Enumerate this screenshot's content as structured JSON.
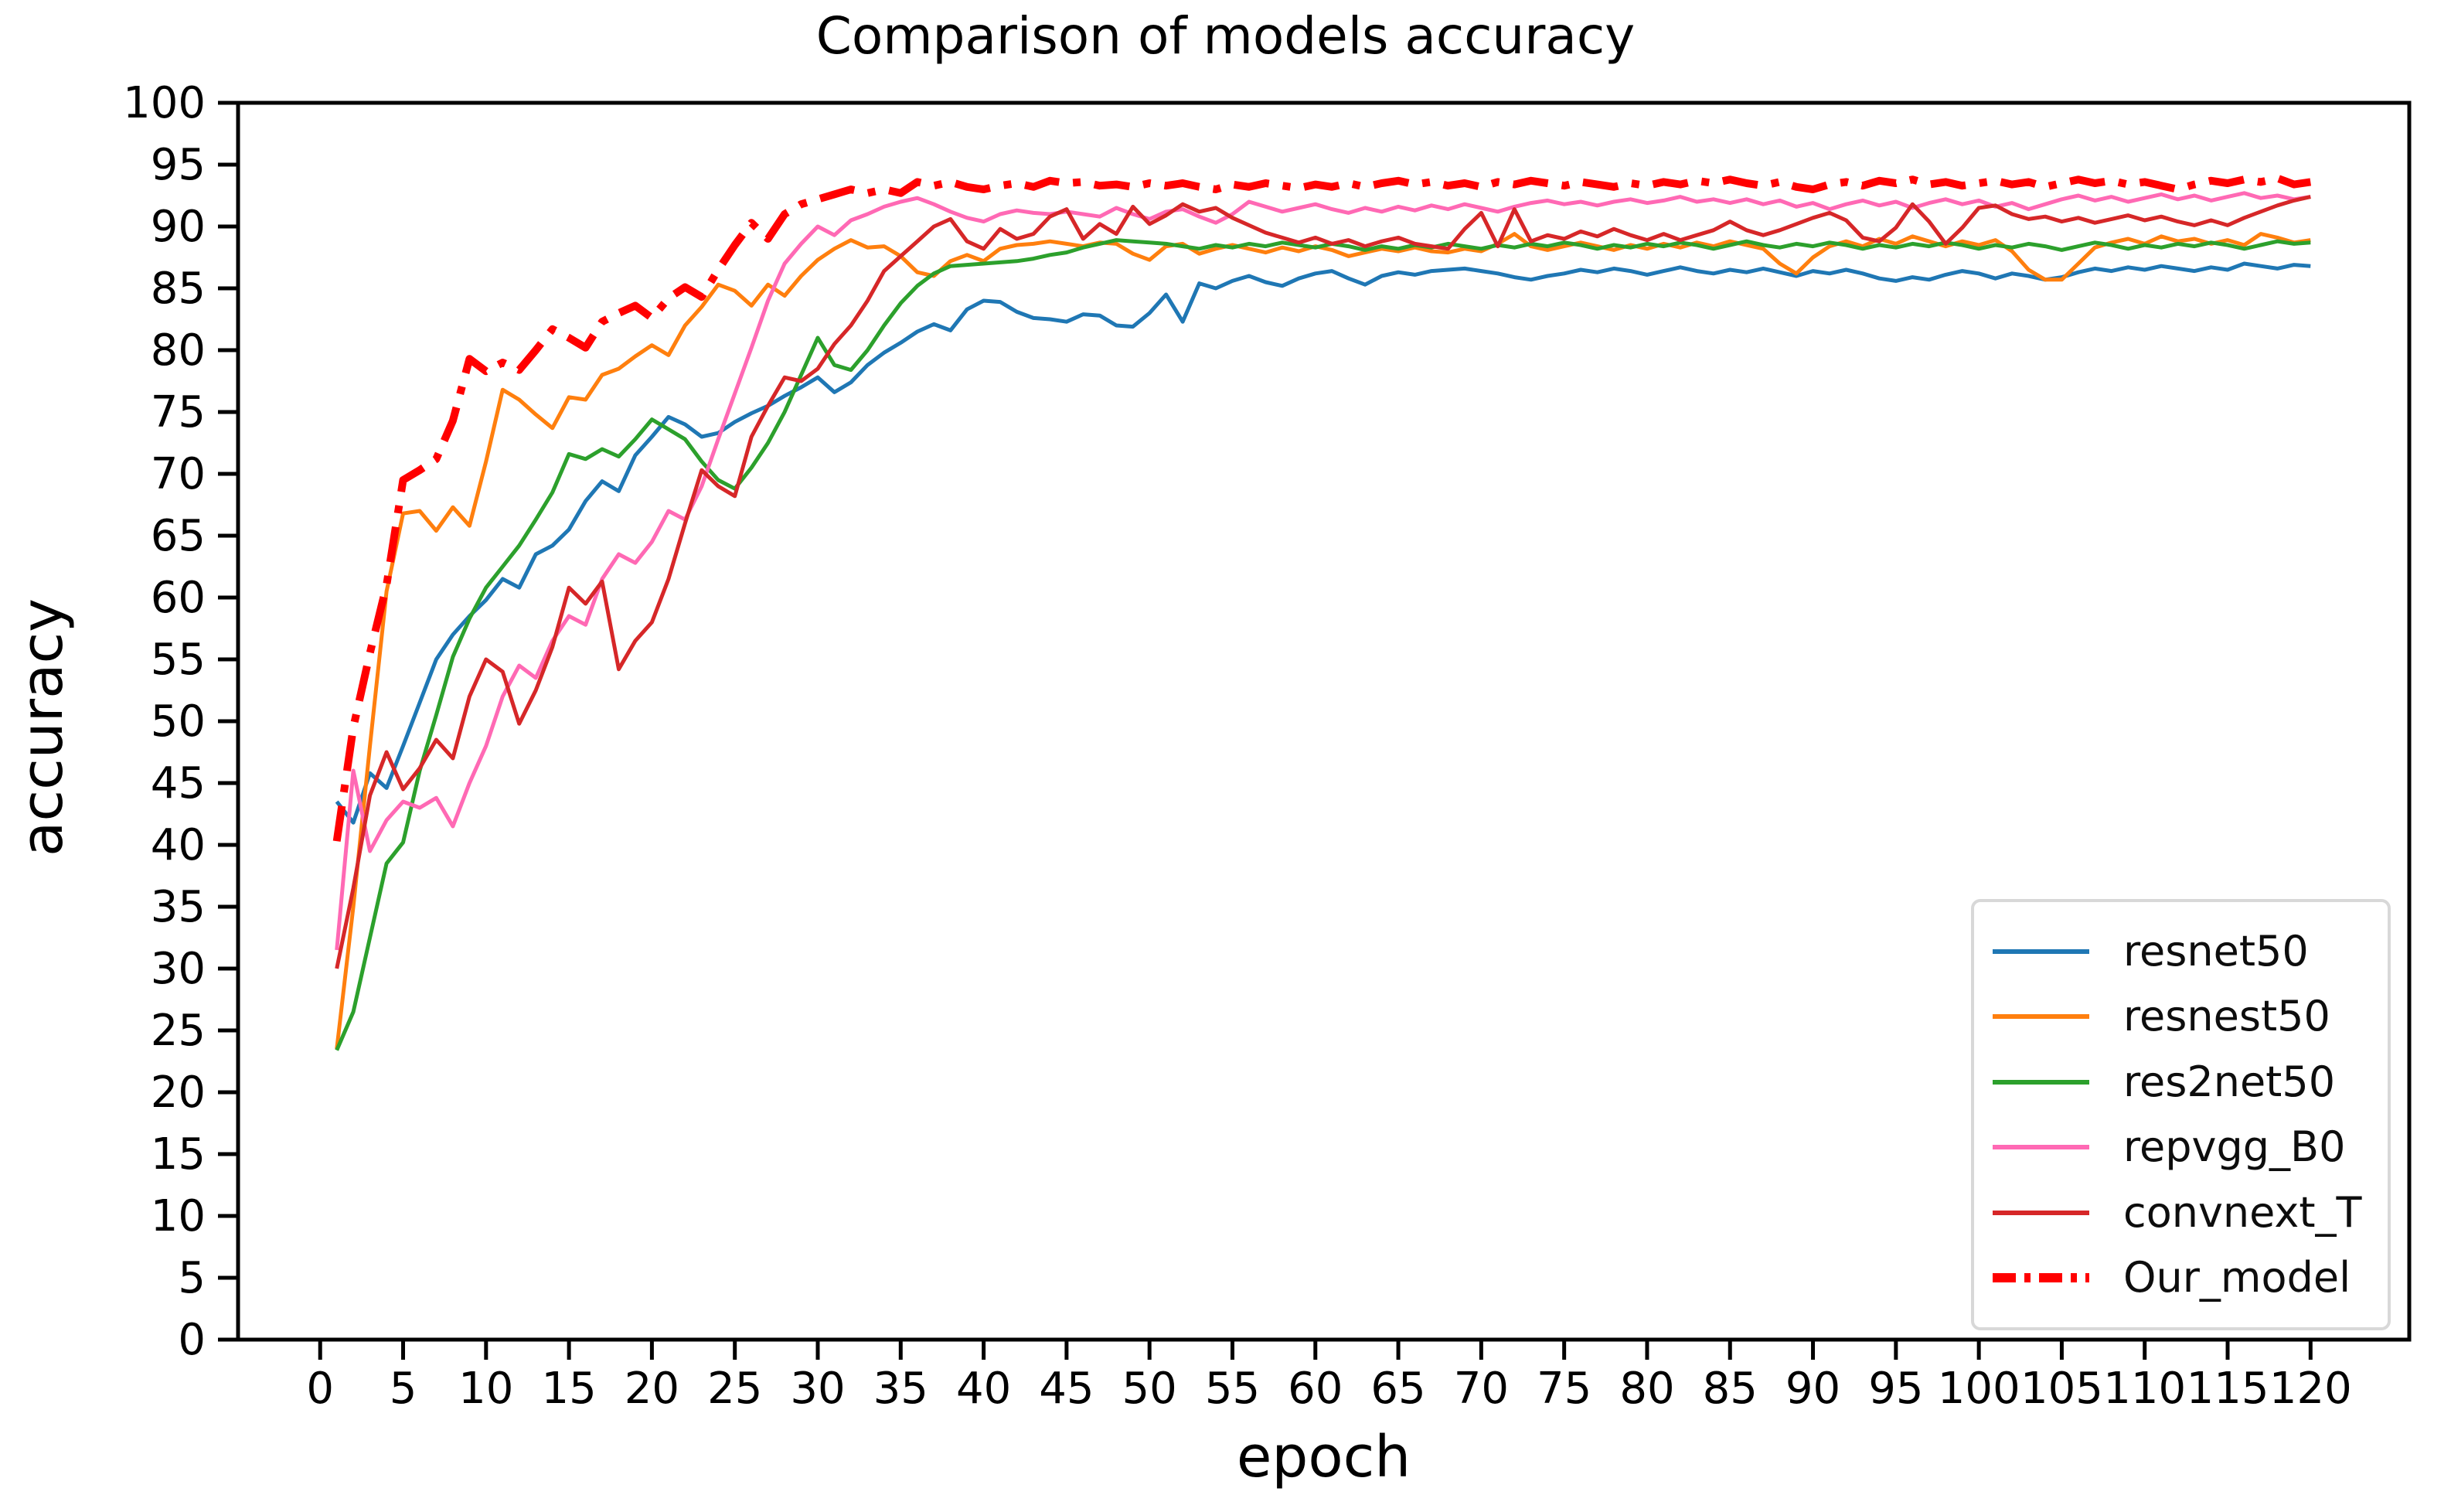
{
  "title": "Comparison of models accuracy",
  "chart_data": {
    "type": "line",
    "title": "Comparison of models accuracy",
    "xlabel": "epoch",
    "ylabel": "accuracy",
    "xlim": [
      -4.95,
      125.95
    ],
    "ylim": [
      0,
      100
    ],
    "xticks": [
      0,
      5,
      10,
      15,
      20,
      25,
      30,
      35,
      40,
      45,
      50,
      55,
      60,
      65,
      70,
      75,
      80,
      85,
      90,
      95,
      100,
      105,
      110,
      115,
      120
    ],
    "yticks": [
      0,
      5,
      10,
      15,
      20,
      25,
      30,
      35,
      40,
      45,
      50,
      55,
      60,
      65,
      70,
      75,
      80,
      85,
      90,
      95,
      100
    ],
    "grid": false,
    "legend_position": "lower right",
    "x": [
      1,
      2,
      3,
      4,
      5,
      6,
      7,
      8,
      9,
      10,
      11,
      12,
      13,
      14,
      15,
      16,
      17,
      18,
      19,
      20,
      21,
      22,
      23,
      24,
      25,
      26,
      27,
      28,
      29,
      30,
      31,
      32,
      33,
      34,
      35,
      36,
      37,
      38,
      39,
      40,
      41,
      42,
      43,
      44,
      45,
      46,
      47,
      48,
      49,
      50,
      51,
      52,
      53,
      54,
      55,
      56,
      57,
      58,
      59,
      60,
      61,
      62,
      63,
      64,
      65,
      66,
      67,
      68,
      69,
      70,
      71,
      72,
      73,
      74,
      75,
      76,
      77,
      78,
      79,
      80,
      81,
      82,
      83,
      84,
      85,
      86,
      87,
      88,
      89,
      90,
      91,
      92,
      93,
      94,
      95,
      96,
      97,
      98,
      99,
      100,
      101,
      102,
      103,
      104,
      105,
      106,
      107,
      108,
      109,
      110,
      111,
      112,
      113,
      114,
      115,
      116,
      117,
      118,
      119,
      120
    ],
    "series": [
      {
        "name": "resnet50",
        "color": "#1f77b4",
        "linewidth": 5,
        "linestyle": "solid",
        "values": [
          43.5,
          41.8,
          45.8,
          44.6,
          48.0,
          51.5,
          55.0,
          57.0,
          58.5,
          59.8,
          61.5,
          60.8,
          63.5,
          64.2,
          65.5,
          67.8,
          69.4,
          68.6,
          71.5,
          73.0,
          74.6,
          74.0,
          73.0,
          73.3,
          74.2,
          74.9,
          75.5,
          76.3,
          77.0,
          77.8,
          76.6,
          77.4,
          78.8,
          79.8,
          80.6,
          81.5,
          82.1,
          81.6,
          83.3,
          84.0,
          83.9,
          83.1,
          82.6,
          82.5,
          82.3,
          82.9,
          82.8,
          82.0,
          81.9,
          83.0,
          84.5,
          82.3,
          85.4,
          85.0,
          85.6,
          86.0,
          85.5,
          85.2,
          85.8,
          86.2,
          86.4,
          85.8,
          85.3,
          86.0,
          86.3,
          86.1,
          86.4,
          86.5,
          86.6,
          86.4,
          86.2,
          85.9,
          85.7,
          86.0,
          86.2,
          86.5,
          86.3,
          86.6,
          86.4,
          86.1,
          86.4,
          86.7,
          86.4,
          86.2,
          86.5,
          86.3,
          86.6,
          86.3,
          86.0,
          86.4,
          86.2,
          86.5,
          86.2,
          85.8,
          85.6,
          85.9,
          85.7,
          86.1,
          86.4,
          86.2,
          85.8,
          86.2,
          86.0,
          85.7,
          85.9,
          86.3,
          86.6,
          86.4,
          86.7,
          86.5,
          86.8,
          86.6,
          86.4,
          86.7,
          86.5,
          87.0,
          86.8,
          86.6,
          86.9,
          86.8
        ]
      },
      {
        "name": "resnest50",
        "color": "#ff7f0e",
        "linewidth": 5,
        "linestyle": "solid",
        "values": [
          23.5,
          35.0,
          48.0,
          60.5,
          66.8,
          67.0,
          65.4,
          67.3,
          65.8,
          71.0,
          76.8,
          76.0,
          74.8,
          73.7,
          76.2,
          76.0,
          78.0,
          78.5,
          79.5,
          80.4,
          79.6,
          82.0,
          83.5,
          85.3,
          84.8,
          83.6,
          85.3,
          84.4,
          86.0,
          87.3,
          88.2,
          88.9,
          88.3,
          88.4,
          87.6,
          86.3,
          86.0,
          87.2,
          87.7,
          87.2,
          88.2,
          88.5,
          88.6,
          88.8,
          88.6,
          88.4,
          88.7,
          88.6,
          87.8,
          87.3,
          88.4,
          88.6,
          87.8,
          88.2,
          88.5,
          88.2,
          87.9,
          88.3,
          88.0,
          88.4,
          88.1,
          87.6,
          87.9,
          88.2,
          88.0,
          88.3,
          88.0,
          87.9,
          88.2,
          88.0,
          88.6,
          89.4,
          88.4,
          88.1,
          88.4,
          88.7,
          88.4,
          88.1,
          88.5,
          88.2,
          88.6,
          88.3,
          88.7,
          88.4,
          88.8,
          88.5,
          88.2,
          87.0,
          86.2,
          87.5,
          88.4,
          88.8,
          88.4,
          89.0,
          88.6,
          89.2,
          88.8,
          88.4,
          88.8,
          88.5,
          88.9,
          88.0,
          86.5,
          85.7,
          85.7,
          87.0,
          88.3,
          88.7,
          89.0,
          88.6,
          89.2,
          88.8,
          89.0,
          88.6,
          88.9,
          88.5,
          89.4,
          89.1,
          88.7,
          88.9
        ]
      },
      {
        "name": "res2net50",
        "color": "#2ca02c",
        "linewidth": 5,
        "linestyle": "solid",
        "values": [
          23.4,
          26.5,
          32.5,
          38.5,
          40.2,
          46.0,
          50.5,
          55.2,
          58.3,
          60.8,
          62.5,
          64.2,
          66.3,
          68.5,
          71.6,
          71.2,
          72.0,
          71.4,
          72.8,
          74.4,
          73.6,
          72.8,
          71.0,
          69.5,
          68.8,
          70.5,
          72.5,
          75.0,
          78.0,
          81.0,
          78.8,
          78.4,
          80.0,
          82.0,
          83.8,
          85.2,
          86.2,
          86.8,
          86.9,
          87.0,
          87.1,
          87.2,
          87.4,
          87.7,
          87.9,
          88.3,
          88.6,
          88.9,
          88.8,
          88.7,
          88.6,
          88.4,
          88.2,
          88.5,
          88.3,
          88.6,
          88.4,
          88.7,
          88.5,
          88.3,
          88.6,
          88.4,
          88.1,
          88.4,
          88.2,
          88.5,
          88.3,
          88.6,
          88.4,
          88.2,
          88.5,
          88.3,
          88.6,
          88.4,
          88.7,
          88.5,
          88.2,
          88.5,
          88.3,
          88.6,
          88.4,
          88.7,
          88.5,
          88.2,
          88.5,
          88.8,
          88.5,
          88.3,
          88.6,
          88.4,
          88.7,
          88.5,
          88.2,
          88.5,
          88.3,
          88.6,
          88.4,
          88.7,
          88.5,
          88.2,
          88.5,
          88.3,
          88.6,
          88.4,
          88.1,
          88.4,
          88.7,
          88.5,
          88.2,
          88.5,
          88.3,
          88.6,
          88.4,
          88.7,
          88.5,
          88.2,
          88.5,
          88.8,
          88.6,
          88.7
        ]
      },
      {
        "name": "repvgg_B0",
        "color": "#ff69b4",
        "linewidth": 5,
        "linestyle": "solid",
        "values": [
          31.5,
          46.0,
          39.5,
          42.0,
          43.5,
          43.0,
          43.8,
          41.5,
          45.0,
          48.0,
          52.0,
          54.5,
          53.5,
          56.5,
          58.5,
          57.8,
          61.5,
          63.5,
          62.8,
          64.5,
          67.0,
          66.3,
          69.0,
          72.8,
          76.5,
          80.2,
          84.0,
          87.0,
          88.6,
          90.0,
          89.3,
          90.5,
          91.0,
          91.6,
          92.0,
          92.3,
          91.8,
          91.2,
          90.7,
          90.4,
          91.0,
          91.3,
          91.1,
          91.0,
          91.2,
          91.0,
          90.8,
          91.5,
          91.0,
          90.6,
          91.2,
          91.4,
          90.8,
          90.3,
          91.0,
          92.0,
          91.6,
          91.2,
          91.5,
          91.8,
          91.4,
          91.1,
          91.5,
          91.2,
          91.6,
          91.3,
          91.7,
          91.4,
          91.8,
          91.5,
          91.2,
          91.6,
          91.9,
          92.1,
          91.8,
          92.0,
          91.7,
          92.0,
          92.2,
          91.9,
          92.1,
          92.4,
          92.0,
          92.2,
          91.9,
          92.2,
          91.8,
          92.1,
          91.6,
          91.9,
          91.4,
          91.8,
          92.1,
          91.7,
          92.0,
          91.5,
          91.9,
          92.2,
          91.8,
          92.1,
          91.6,
          91.9,
          91.4,
          91.8,
          92.2,
          92.5,
          92.1,
          92.4,
          92.0,
          92.3,
          92.6,
          92.2,
          92.5,
          92.1,
          92.4,
          92.7,
          92.3,
          92.5,
          92.2,
          92.4
        ]
      },
      {
        "name": "convnext_T",
        "color": "#d62728",
        "linewidth": 5,
        "linestyle": "solid",
        "values": [
          30.0,
          36.5,
          44.0,
          47.5,
          44.5,
          46.2,
          48.5,
          47.0,
          52.0,
          55.0,
          54.0,
          49.8,
          52.5,
          56.0,
          60.8,
          59.5,
          61.3,
          54.2,
          56.5,
          58.0,
          61.5,
          66.0,
          70.3,
          69.0,
          68.2,
          73.0,
          75.5,
          77.8,
          77.5,
          78.5,
          80.5,
          82.0,
          84.0,
          86.4,
          87.6,
          88.8,
          90.0,
          90.6,
          88.8,
          88.2,
          89.8,
          89.0,
          89.4,
          90.8,
          91.4,
          89.0,
          90.2,
          89.4,
          91.6,
          90.2,
          90.9,
          91.8,
          91.2,
          91.5,
          90.7,
          90.1,
          89.5,
          89.1,
          88.7,
          89.1,
          88.6,
          88.9,
          88.4,
          88.8,
          89.1,
          88.6,
          88.4,
          88.2,
          89.8,
          91.1,
          88.4,
          91.4,
          88.8,
          89.3,
          89.0,
          89.6,
          89.2,
          89.8,
          89.3,
          88.9,
          89.4,
          88.9,
          89.3,
          89.7,
          90.4,
          89.7,
          89.3,
          89.7,
          90.2,
          90.7,
          91.1,
          90.5,
          89.1,
          88.8,
          89.9,
          91.8,
          90.4,
          88.6,
          89.9,
          91.5,
          91.7,
          91.0,
          90.6,
          90.8,
          90.4,
          90.7,
          90.3,
          90.6,
          90.9,
          90.5,
          90.8,
          90.4,
          90.1,
          90.5,
          90.1,
          90.7,
          91.2,
          91.7,
          92.1,
          92.4
        ]
      },
      {
        "name": "Our_model",
        "color": "#ff0000",
        "linewidth": 10,
        "linestyle": "dashdot",
        "values": [
          40.3,
          49.5,
          55.5,
          61.0,
          69.5,
          70.3,
          71.2,
          74.3,
          79.3,
          78.3,
          79.0,
          78.4,
          80.0,
          81.7,
          81.0,
          80.2,
          82.3,
          83.0,
          83.6,
          82.6,
          84.2,
          85.1,
          84.3,
          86.5,
          88.5,
          90.3,
          89.0,
          91.0,
          91.8,
          92.2,
          92.6,
          93.0,
          92.7,
          93.0,
          92.7,
          93.6,
          93.3,
          93.6,
          93.2,
          93.0,
          93.3,
          93.5,
          93.2,
          93.7,
          93.5,
          93.6,
          93.3,
          93.4,
          93.2,
          93.5,
          93.3,
          93.5,
          93.2,
          93.0,
          93.4,
          93.2,
          93.5,
          93.3,
          93.1,
          93.4,
          93.2,
          93.5,
          93.2,
          93.5,
          93.7,
          93.4,
          93.6,
          93.3,
          93.5,
          93.2,
          93.6,
          93.4,
          93.7,
          93.5,
          93.3,
          93.6,
          93.4,
          93.2,
          93.5,
          93.3,
          93.6,
          93.4,
          93.7,
          93.5,
          93.8,
          93.5,
          93.3,
          93.6,
          93.2,
          93.0,
          93.4,
          93.6,
          93.3,
          93.7,
          93.5,
          93.8,
          93.4,
          93.6,
          93.3,
          93.5,
          93.7,
          93.4,
          93.6,
          93.2,
          93.5,
          93.8,
          93.5,
          93.7,
          93.4,
          93.6,
          93.3,
          93.0,
          93.4,
          93.7,
          93.5,
          93.8,
          93.6,
          93.9,
          93.4,
          93.6
        ]
      }
    ]
  }
}
